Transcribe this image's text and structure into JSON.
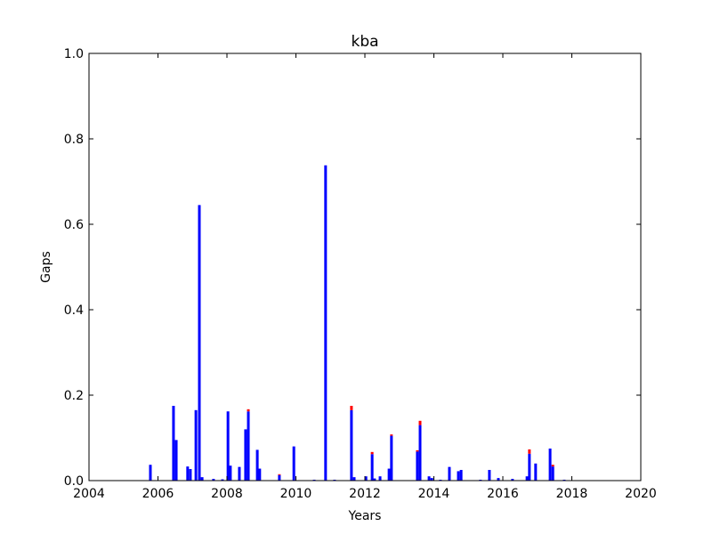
{
  "chart_data": {
    "type": "bar",
    "title": "kba",
    "xlabel": "Years",
    "ylabel": "Gaps",
    "x": [
      2005.78,
      2006.45,
      2006.53,
      2006.86,
      2006.94,
      2007.1,
      2007.2,
      2007.28,
      2007.61,
      2007.87,
      2008.03,
      2008.1,
      2008.36,
      2008.54,
      2008.62,
      2008.88,
      2008.95,
      2009.52,
      2009.94,
      2010.53,
      2010.86,
      2011.12,
      2011.61,
      2011.69,
      2012.03,
      2012.21,
      2012.28,
      2012.44,
      2012.7,
      2012.77,
      2013.52,
      2013.6,
      2013.86,
      2013.94,
      2014.19,
      2014.45,
      2014.71,
      2014.79,
      2015.35,
      2015.61,
      2015.87,
      2016.28,
      2016.7,
      2016.77,
      2016.95,
      2017.37,
      2017.45,
      2017.78
    ],
    "series": [
      {
        "color": "#0000ff",
        "values": [
          0.037,
          0.175,
          0.095,
          0.033,
          0.027,
          0.165,
          0.645,
          0.008,
          0.004,
          0.003,
          0.162,
          0.035,
          0.032,
          0.12,
          0.162,
          0.072,
          0.028,
          0.013,
          0.08,
          0.002,
          0.738,
          0.002,
          0.165,
          0.008,
          0.01,
          0.062,
          0.005,
          0.01,
          0.028,
          0.105,
          0.068,
          0.13,
          0.01,
          0.006,
          0.002,
          0.032,
          0.022,
          0.025,
          0.002,
          0.025,
          0.006,
          0.004,
          0.01,
          0.063,
          0.04,
          0.075,
          0.033,
          0.002
        ]
      },
      {
        "color": "#ff0000",
        "values": [
          0,
          0,
          0,
          0,
          0,
          0,
          0,
          0,
          0,
          0,
          0,
          0,
          0,
          0,
          0.005,
          0,
          0,
          0.002,
          0,
          0,
          0,
          0,
          0.01,
          0,
          0,
          0.005,
          0,
          0,
          0,
          0.003,
          0.003,
          0.01,
          0,
          0,
          0,
          0,
          0,
          0,
          0,
          0,
          0,
          0,
          0,
          0.01,
          0,
          0,
          0.004,
          0
        ]
      }
    ],
    "xlim": [
      2004,
      2020
    ],
    "xticks": [
      2004,
      2006,
      2008,
      2010,
      2012,
      2014,
      2016,
      2018,
      2020
    ],
    "ylim": [
      0,
      1
    ],
    "yticks": [
      {
        "value": 0,
        "label": "0.0"
      },
      0.2,
      0.4,
      0.6,
      0.8,
      {
        "value": 1,
        "label": "1.0"
      }
    ]
  }
}
